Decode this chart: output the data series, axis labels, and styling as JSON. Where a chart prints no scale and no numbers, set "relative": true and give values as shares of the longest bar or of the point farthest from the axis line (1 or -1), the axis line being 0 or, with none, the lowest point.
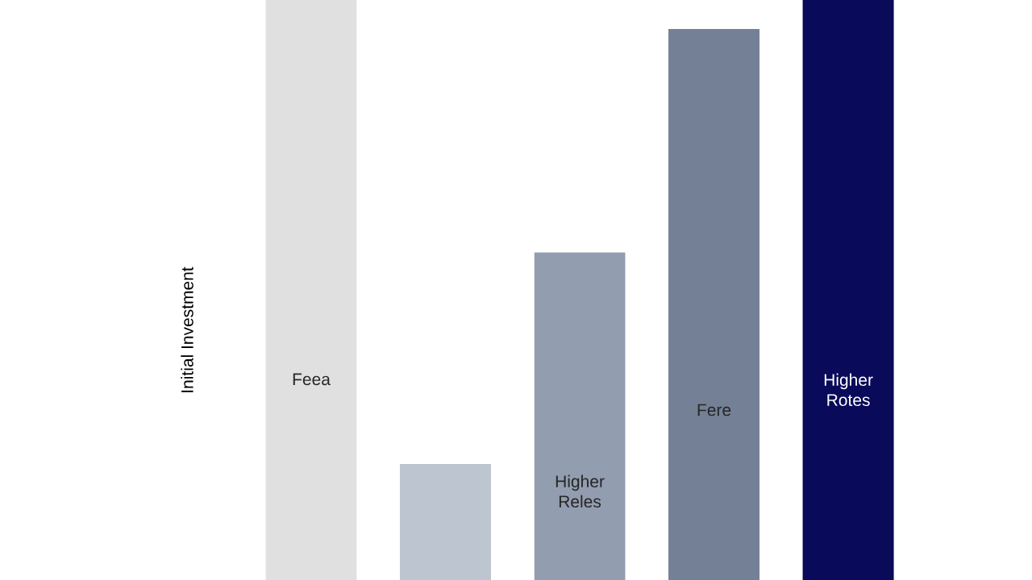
{
  "chart_data": {
    "type": "bar",
    "relative": true,
    "ylabel": "Initial Investment",
    "categories": [
      "Feea",
      null,
      "Higher Reles",
      "Fere",
      "Higher Rotes"
    ],
    "values": [
      1,
      0.2,
      0.565,
      0.95,
      1
    ],
    "colors": [
      "#e0e0e0",
      "#bcc5d0",
      "#939db0",
      "#748095",
      "#0a0a5a"
    ]
  }
}
